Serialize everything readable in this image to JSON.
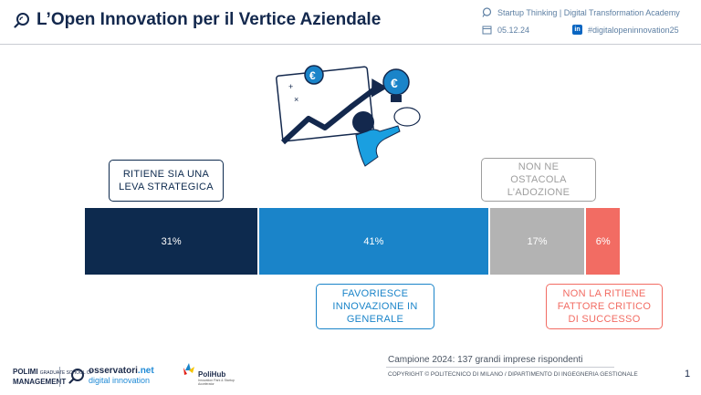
{
  "header": {
    "title": "L’Open Innovation per il Vertice Aziendale",
    "program": "Startup Thinking | Digital Transformation Academy",
    "date": "05.12.24",
    "hashtag": "#digitalopeninnovation25",
    "icons": [
      "magnifier-icon",
      "chat-bubble-icon",
      "calendar-icon",
      "linkedin-icon"
    ]
  },
  "chart_data": {
    "type": "bar",
    "orientation": "horizontal-stacked",
    "series": [
      {
        "name": "RITIENE SIA UNA LEVA STRATEGICA",
        "value": 31,
        "label": "31%",
        "color": "#0d2a4e"
      },
      {
        "name": "FAVORIESCE INNOVAZIONE IN GENERALE",
        "value": 41,
        "label": "41%",
        "color": "#1a84c9"
      },
      {
        "name": "NON NE OSTACOLA L’ADOZIONE",
        "value": 17,
        "label": "17%",
        "color": "#b3b3b3"
      },
      {
        "name": "NON LA RITIENE FATTORE CRITICO DI SUCCESSO",
        "value": 6,
        "label": "6%",
        "color": "#f26c63"
      }
    ],
    "callouts": [
      {
        "text": "RITIENE SIA UNA\nLEVA STRATEGICA",
        "color": "#0d2a4e"
      },
      {
        "text": "FAVORIESCE\nINNOVAZIONE IN\nGENERALE",
        "color": "#1a84c9"
      },
      {
        "text": "NON NE\nOSTACOLA\nL’ADOZIONE",
        "color": "#9e9e9e"
      },
      {
        "text": "NON LA RITIENE\nFATTORE CRITICO\nDI SUCCESSO",
        "color": "#f26c63"
      }
    ]
  },
  "illustration": {
    "name": "growth-chart-illustration",
    "icons": [
      "euro-coin-icon",
      "lightbulb-euro-icon",
      "pointing-hand-icon",
      "arrow-up-icon"
    ]
  },
  "footer": {
    "sample": "Campione 2024: 137 grandi imprese rispondenti",
    "copyright": "COPYRIGHT © POLITECNICO DI MILANO / DIPARTIMENTO DI INGEGNERIA GESTIONALE",
    "page_number": "1",
    "logos": {
      "polimi_line1": "POLIMI",
      "polimi_small": "GRADUATE SCHOOL OF",
      "polimi_line2": "MANAGEMENT",
      "osservatori_a": "osservatori",
      "osservatori_b": ".net",
      "osservatori_sub": "digital innovation",
      "polihub": "PoliHub",
      "polihub_sub": "Innovation Park & Startup Accelerator"
    }
  }
}
